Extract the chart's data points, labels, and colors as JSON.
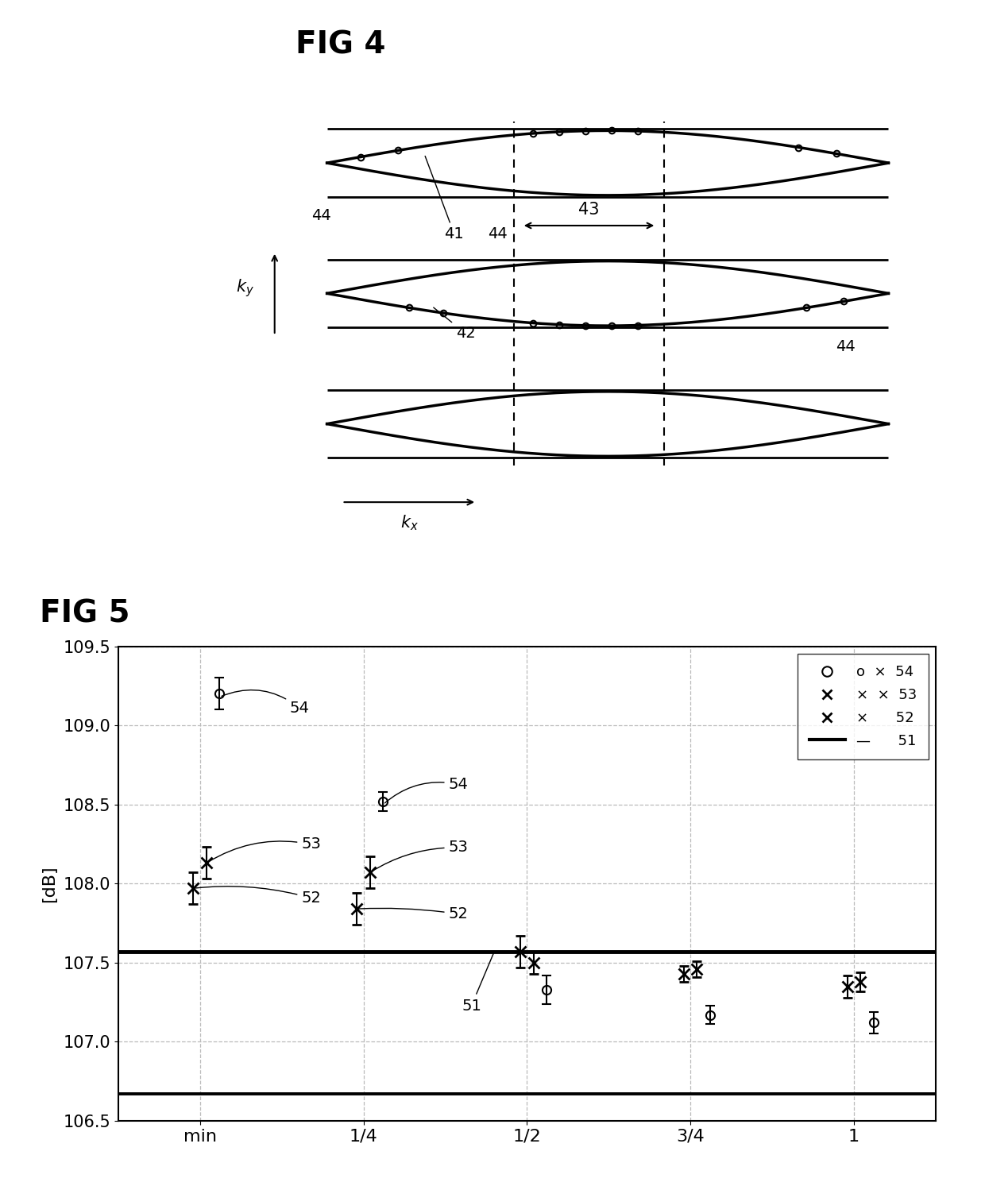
{
  "fig4_title": "FIG 4",
  "fig5_title": "FIG 5",
  "fig5_ylabel": "[dB]",
  "fig5_xticks": [
    "min",
    "1/4",
    "1/2",
    "3/4",
    "1"
  ],
  "fig5_xtick_vals": [
    0,
    1,
    2,
    3,
    4
  ],
  "fig5_ylim": [
    106.5,
    109.5
  ],
  "fig5_yticks": [
    106.5,
    107.0,
    107.5,
    108.0,
    108.5,
    109.0,
    109.5
  ],
  "fig5_hline_y": 107.57,
  "fig5_hline_lw": 3.5,
  "series54_y": [
    109.2,
    108.52,
    107.33,
    107.17,
    107.12
  ],
  "series54_yerr": [
    0.1,
    0.06,
    0.09,
    0.06,
    0.07
  ],
  "series53_y": [
    108.13,
    108.07,
    107.5,
    107.46,
    107.38
  ],
  "series53_yerr": [
    0.1,
    0.1,
    0.07,
    0.05,
    0.06
  ],
  "series52_y": [
    107.97,
    107.84,
    107.57,
    107.43,
    107.35
  ],
  "series52_yerr": [
    0.1,
    0.1,
    0.1,
    0.05,
    0.07
  ],
  "bg_color": "#ffffff",
  "grid_color": "#bbbbbb",
  "line_color": "#000000"
}
